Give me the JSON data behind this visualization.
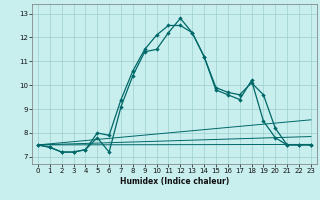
{
  "title": "",
  "xlabel": "Humidex (Indice chaleur)",
  "bg_color": "#c8eeee",
  "grid_color": "#9ecece",
  "line_color": "#006868",
  "x_ticks": [
    0,
    1,
    2,
    3,
    4,
    5,
    6,
    7,
    8,
    9,
    10,
    11,
    12,
    13,
    14,
    15,
    16,
    17,
    18,
    19,
    20,
    21,
    22,
    23
  ],
  "y_ticks": [
    7,
    8,
    9,
    10,
    11,
    12,
    13
  ],
  "ylim": [
    6.7,
    13.4
  ],
  "xlim": [
    -0.5,
    23.5
  ],
  "series1_x": [
    0,
    1,
    2,
    3,
    4,
    5,
    6,
    7,
    8,
    9,
    10,
    11,
    12,
    13,
    14,
    15,
    16,
    17,
    18,
    19,
    20,
    21,
    22,
    23
  ],
  "series1_y": [
    7.5,
    7.4,
    7.2,
    7.2,
    7.3,
    7.8,
    7.2,
    9.1,
    10.4,
    11.4,
    11.5,
    12.2,
    12.8,
    12.2,
    11.2,
    9.8,
    9.6,
    9.4,
    10.2,
    8.5,
    7.8,
    7.5,
    7.5,
    7.5
  ],
  "series2_x": [
    0,
    1,
    2,
    3,
    4,
    5,
    6,
    7,
    8,
    9,
    10,
    11,
    12,
    13,
    14,
    15,
    16,
    17,
    18,
    19,
    20,
    21,
    22,
    23
  ],
  "series2_y": [
    7.5,
    7.4,
    7.2,
    7.2,
    7.3,
    8.0,
    7.9,
    9.4,
    10.6,
    11.5,
    12.1,
    12.5,
    12.5,
    12.2,
    11.2,
    9.9,
    9.7,
    9.6,
    10.1,
    9.6,
    8.2,
    7.5,
    7.5,
    7.5
  ],
  "flat_lines": [
    {
      "x": [
        0,
        23
      ],
      "y_start": 7.5,
      "y_end": 7.52
    },
    {
      "x": [
        0,
        23
      ],
      "y_start": 7.5,
      "y_end": 7.85
    },
    {
      "x": [
        0,
        23
      ],
      "y_start": 7.5,
      "y_end": 8.55
    }
  ]
}
